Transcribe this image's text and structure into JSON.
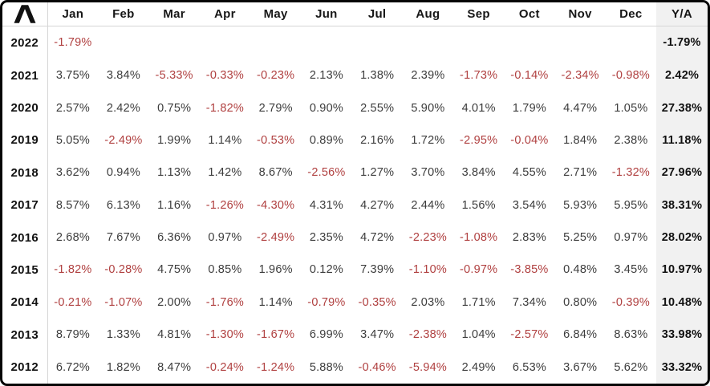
{
  "colors": {
    "negative_text": "#b04040",
    "positive_text": "#3c3c3c",
    "header_text": "#161616",
    "ya_column_bg": "#f1f1f1",
    "divider": "#d6d6d6",
    "outer_border": "#050505"
  },
  "header": {
    "logo_icon": "caret-lambda-logo",
    "months": [
      "Jan",
      "Feb",
      "Mar",
      "Apr",
      "May",
      "Jun",
      "Jul",
      "Aug",
      "Sep",
      "Oct",
      "Nov",
      "Dec"
    ],
    "ya_label": "Y/A"
  },
  "rows": [
    {
      "year": "2022",
      "cells": [
        "-1.79%",
        "",
        "",
        "",
        "",
        "",
        "",
        "",
        "",
        "",
        "",
        ""
      ],
      "ya": "-1.79%"
    },
    {
      "year": "2021",
      "cells": [
        "3.75%",
        "3.84%",
        "-5.33%",
        "-0.33%",
        "-0.23%",
        "2.13%",
        "1.38%",
        "2.39%",
        "-1.73%",
        "-0.14%",
        "-2.34%",
        "-0.98%"
      ],
      "ya": "2.42%"
    },
    {
      "year": "2020",
      "cells": [
        "2.57%",
        "2.42%",
        "0.75%",
        "-1.82%",
        "2.79%",
        "0.90%",
        "2.55%",
        "5.90%",
        "4.01%",
        "1.79%",
        "4.47%",
        "1.05%"
      ],
      "ya": "27.38%"
    },
    {
      "year": "2019",
      "cells": [
        "5.05%",
        "-2.49%",
        "1.99%",
        "1.14%",
        "-0.53%",
        "0.89%",
        "2.16%",
        "1.72%",
        "-2.95%",
        "-0.04%",
        "1.84%",
        "2.38%"
      ],
      "ya": "11.18%"
    },
    {
      "year": "2018",
      "cells": [
        "3.62%",
        "0.94%",
        "1.13%",
        "1.42%",
        "8.67%",
        "-2.56%",
        "1.27%",
        "3.70%",
        "3.84%",
        "4.55%",
        "2.71%",
        "-1.32%"
      ],
      "ya": "27.96%"
    },
    {
      "year": "2017",
      "cells": [
        "8.57%",
        "6.13%",
        "1.16%",
        "-1.26%",
        "-4.30%",
        "4.31%",
        "4.27%",
        "2.44%",
        "1.56%",
        "3.54%",
        "5.93%",
        "5.95%"
      ],
      "ya": "38.31%"
    },
    {
      "year": "2016",
      "cells": [
        "2.68%",
        "7.67%",
        "6.36%",
        "0.97%",
        "-2.49%",
        "2.35%",
        "4.72%",
        "-2.23%",
        "-1.08%",
        "2.83%",
        "5.25%",
        "0.97%"
      ],
      "ya": "28.02%"
    },
    {
      "year": "2015",
      "cells": [
        "-1.82%",
        "-0.28%",
        "4.75%",
        "0.85%",
        "1.96%",
        "0.12%",
        "7.39%",
        "-1.10%",
        "-0.97%",
        "-3.85%",
        "0.48%",
        "3.45%"
      ],
      "ya": "10.97%"
    },
    {
      "year": "2014",
      "cells": [
        "-0.21%",
        "-1.07%",
        "2.00%",
        "-1.76%",
        "1.14%",
        "-0.79%",
        "-0.35%",
        "2.03%",
        "1.71%",
        "7.34%",
        "0.80%",
        "-0.39%"
      ],
      "ya": "10.48%"
    },
    {
      "year": "2013",
      "cells": [
        "8.79%",
        "1.33%",
        "4.81%",
        "-1.30%",
        "-1.67%",
        "6.99%",
        "3.47%",
        "-2.38%",
        "1.04%",
        "-2.57%",
        "6.84%",
        "8.63%"
      ],
      "ya": "33.98%"
    },
    {
      "year": "2012",
      "cells": [
        "6.72%",
        "1.82%",
        "8.47%",
        "-0.24%",
        "-1.24%",
        "5.88%",
        "-0.46%",
        "-5.94%",
        "2.49%",
        "6.53%",
        "3.67%",
        "5.62%"
      ],
      "ya": "33.32%"
    }
  ],
  "chart_data": {
    "type": "table",
    "columns": [
      "Jan",
      "Feb",
      "Mar",
      "Apr",
      "May",
      "Jun",
      "Jul",
      "Aug",
      "Sep",
      "Oct",
      "Nov",
      "Dec",
      "Y/A"
    ],
    "unit": "%",
    "rows": [
      {
        "year": 2022,
        "values": [
          -1.79,
          null,
          null,
          null,
          null,
          null,
          null,
          null,
          null,
          null,
          null,
          null
        ],
        "year_total": -1.79
      },
      {
        "year": 2021,
        "values": [
          3.75,
          3.84,
          -5.33,
          -0.33,
          -0.23,
          2.13,
          1.38,
          2.39,
          -1.73,
          -0.14,
          -2.34,
          -0.98
        ],
        "year_total": 2.42
      },
      {
        "year": 2020,
        "values": [
          2.57,
          2.42,
          0.75,
          -1.82,
          2.79,
          0.9,
          2.55,
          5.9,
          4.01,
          1.79,
          4.47,
          1.05
        ],
        "year_total": 27.38
      },
      {
        "year": 2019,
        "values": [
          5.05,
          -2.49,
          1.99,
          1.14,
          -0.53,
          0.89,
          2.16,
          1.72,
          -2.95,
          -0.04,
          1.84,
          2.38
        ],
        "year_total": 11.18
      },
      {
        "year": 2018,
        "values": [
          3.62,
          0.94,
          1.13,
          1.42,
          8.67,
          -2.56,
          1.27,
          3.7,
          3.84,
          4.55,
          2.71,
          -1.32
        ],
        "year_total": 27.96
      },
      {
        "year": 2017,
        "values": [
          8.57,
          6.13,
          1.16,
          -1.26,
          -4.3,
          4.31,
          4.27,
          2.44,
          1.56,
          3.54,
          5.93,
          5.95
        ],
        "year_total": 38.31
      },
      {
        "year": 2016,
        "values": [
          2.68,
          7.67,
          6.36,
          0.97,
          -2.49,
          2.35,
          4.72,
          -2.23,
          -1.08,
          2.83,
          5.25,
          0.97
        ],
        "year_total": 28.02
      },
      {
        "year": 2015,
        "values": [
          -1.82,
          -0.28,
          4.75,
          0.85,
          1.96,
          0.12,
          7.39,
          -1.1,
          -0.97,
          -3.85,
          0.48,
          3.45
        ],
        "year_total": 10.97
      },
      {
        "year": 2014,
        "values": [
          -0.21,
          -1.07,
          2.0,
          -1.76,
          1.14,
          -0.79,
          -0.35,
          2.03,
          1.71,
          7.34,
          0.8,
          -0.39
        ],
        "year_total": 10.48
      },
      {
        "year": 2013,
        "values": [
          8.79,
          1.33,
          4.81,
          -1.3,
          -1.67,
          6.99,
          3.47,
          -2.38,
          1.04,
          -2.57,
          6.84,
          8.63
        ],
        "year_total": 33.98
      },
      {
        "year": 2012,
        "values": [
          6.72,
          1.82,
          8.47,
          -0.24,
          -1.24,
          5.88,
          -0.46,
          -5.94,
          2.49,
          6.53,
          3.67,
          5.62
        ],
        "year_total": 33.32
      }
    ]
  }
}
